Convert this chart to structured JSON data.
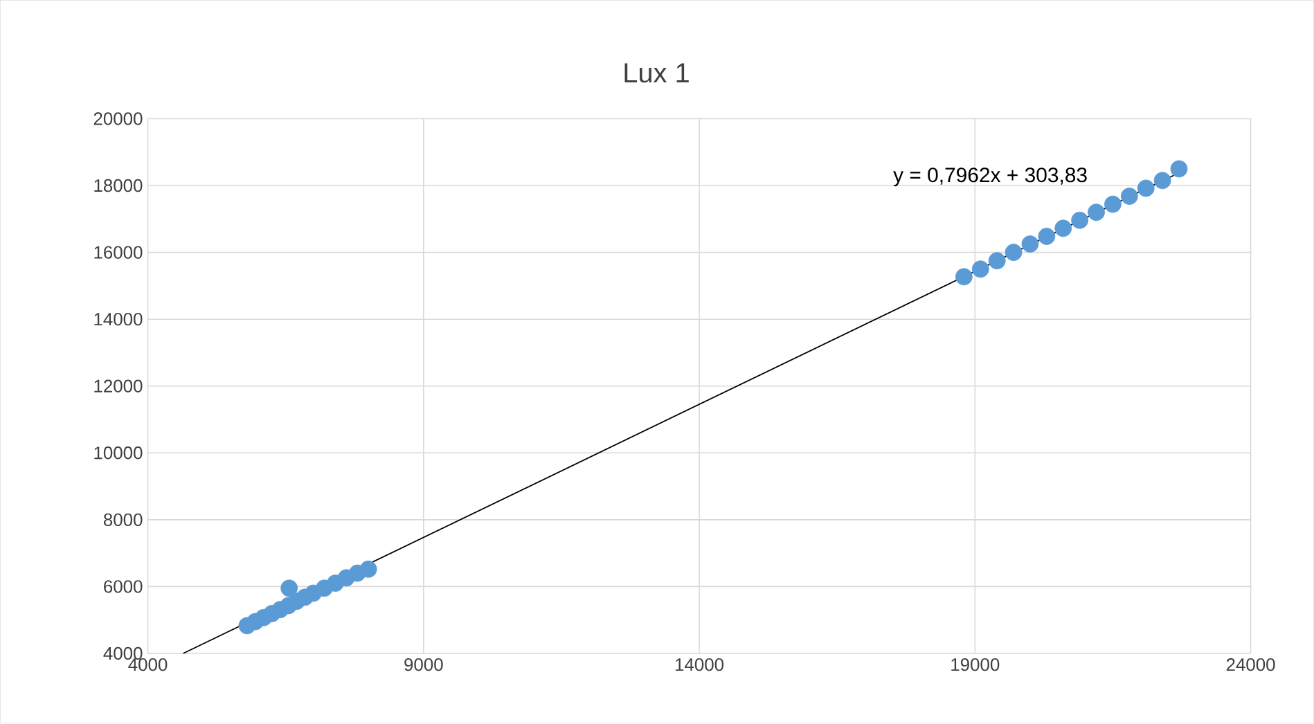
{
  "chart_data": {
    "type": "scatter",
    "title": "Lux 1",
    "xlim": [
      4000,
      24000
    ],
    "ylim": [
      4000,
      20000
    ],
    "xticks": [
      4000,
      9000,
      14000,
      19000,
      24000
    ],
    "yticks": [
      4000,
      6000,
      8000,
      10000,
      12000,
      14000,
      16000,
      18000,
      20000
    ],
    "grid": true,
    "series": [
      {
        "marker": "circle",
        "color": "#5b9bd5",
        "x": [
          5800,
          5950,
          6100,
          6250,
          6400,
          6563,
          6550,
          6700,
          6850,
          7000,
          7200,
          7400,
          7600,
          7800,
          8000,
          18800,
          19100,
          19400,
          19700,
          20000,
          20300,
          20600,
          20900,
          21200,
          21500,
          21800,
          22100,
          22400,
          22700
        ],
        "values": [
          4830,
          4950,
          5070,
          5190,
          5310,
          5950,
          5430,
          5560,
          5680,
          5800,
          5950,
          6100,
          6260,
          6400,
          6520,
          15270,
          15500,
          15750,
          16000,
          16250,
          16480,
          16720,
          16960,
          17200,
          17440,
          17680,
          17920,
          18150,
          18500
        ]
      },
      {
        "type": "line",
        "color": "#000000",
        "x": [
          4642,
          22700
        ],
        "values": [
          4000,
          18380
        ]
      }
    ],
    "annotations": [
      "y = 0,7962x + 303,83"
    ]
  }
}
